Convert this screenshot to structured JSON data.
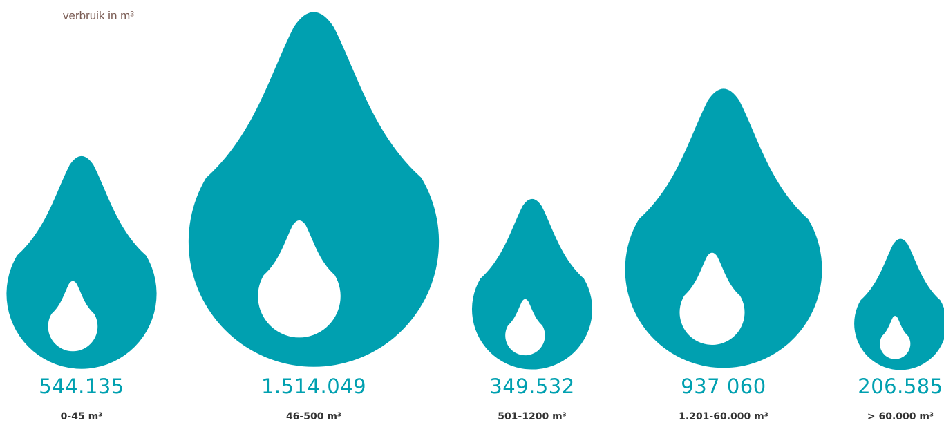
{
  "chart_data": {
    "type": "bar",
    "unit_label": "verbruik in m³",
    "categories": [
      "0-45 m³",
      "46-500 m³",
      "501-1200 m³",
      "1.201-60.000 m³",
      "> 60.000 m³"
    ],
    "values": [
      544135,
      1514049,
      349532,
      937060,
      206585
    ],
    "value_labels": [
      "544.135",
      "1.514.049",
      "349.532",
      "937 060",
      "206.585"
    ]
  },
  "colors": {
    "drop": "#00a0b0",
    "value_text": "#00a0b0",
    "unit_label": "#7a5c54",
    "category_text": "#333333"
  }
}
